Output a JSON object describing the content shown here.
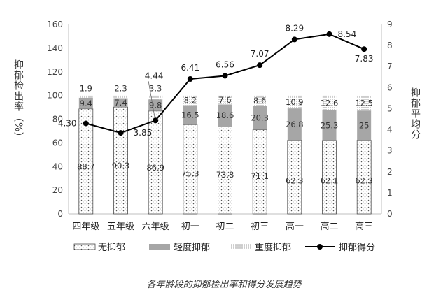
{
  "caption": "各年龄段的抑郁检出率和得分发展趋势",
  "colors": {
    "severe_dots": "#888888",
    "mild_fill": "#a6a6a6",
    "none_dots": "#555555",
    "line": "#000000",
    "axis": "#bfbfbf"
  },
  "chart_data": {
    "type": "bar",
    "stacked": true,
    "categories": [
      "四年级",
      "五年级",
      "六年级",
      "初一",
      "初二",
      "初三",
      "高一",
      "高二",
      "高三"
    ],
    "series": [
      {
        "name": "无抑郁",
        "values": [
          88.7,
          90.3,
          86.9,
          75.3,
          73.8,
          71.1,
          62.3,
          62.1,
          62.3
        ],
        "labels": [
          "88.7",
          "90.3",
          "86.9",
          "75.3",
          "73.8",
          "71.1",
          "62.3",
          "62.1",
          "62.3"
        ]
      },
      {
        "name": "轻度抑郁",
        "values": [
          9.4,
          7.4,
          9.8,
          16.5,
          18.6,
          20.3,
          26.8,
          25.3,
          25
        ],
        "labels": [
          "9.4",
          "7.4",
          "9.8",
          "16.5",
          "18.6",
          "20.3",
          "26.8",
          "25.3",
          "25"
        ]
      },
      {
        "name": "重度抑郁",
        "values": [
          1.9,
          2.3,
          3.3,
          8.2,
          7.6,
          8.6,
          10.9,
          12.6,
          12.5
        ],
        "labels": [
          "1.9",
          "2.3",
          "3.3",
          "8.2",
          "7.6",
          "8.6",
          "10.9",
          "12.6",
          "12.5"
        ]
      }
    ],
    "line_series": {
      "name": "抑郁得分",
      "axis": "right",
      "values": [
        4.3,
        3.85,
        4.44,
        6.41,
        6.56,
        7.07,
        8.29,
        8.54,
        7.83
      ],
      "labels": [
        "4.30",
        "3.85",
        "4.44",
        "6.41",
        "6.56",
        "7.07",
        "8.29",
        "8.54",
        "7.83"
      ]
    },
    "ylabel": "抑郁检出率（%）",
    "y2label": "抑郁平均分",
    "ylim": [
      0,
      160
    ],
    "yticks": [
      "0",
      "20",
      "40",
      "60",
      "80",
      "100",
      "120",
      "140",
      "160"
    ],
    "y2lim": [
      0,
      9
    ],
    "y2ticks": [
      "0",
      "1",
      "2",
      "3",
      "4",
      "5",
      "6",
      "7",
      "8",
      "9"
    ],
    "grid": false,
    "legend_position": "bottom",
    "legend": [
      "无抑郁",
      "轻度抑郁",
      "重度抑郁",
      "抑郁得分"
    ]
  }
}
